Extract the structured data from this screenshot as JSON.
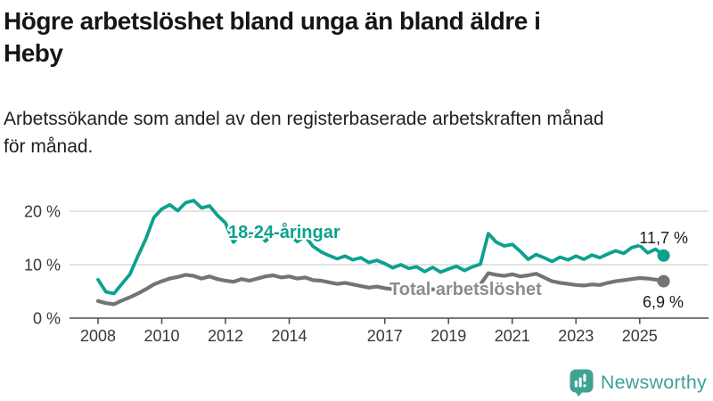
{
  "header": {
    "title_lines": [
      "Högre arbetslöshet bland unga än bland äldre i",
      "Heby"
    ],
    "subtitle_lines": [
      "Arbetssökande som andel av den registerbaserade arbetskraften månad",
      "för månad."
    ]
  },
  "chart_data": {
    "type": "line",
    "title": "Högre arbetslöshet bland unga än bland äldre i Heby",
    "subtitle": "Arbetssökande som andel av den registerbaserade arbetskraften månad för månad.",
    "x_start": 2008,
    "x_step": 0.25,
    "x_ticks": [
      2008,
      2010,
      2012,
      2014,
      2017,
      2019,
      2021,
      2023,
      2025
    ],
    "y_ticks": [
      0,
      10,
      20
    ],
    "y_tick_labels": [
      "0 %",
      "10 %",
      "20 %"
    ],
    "ylim": [
      0,
      23
    ],
    "xlabel": "",
    "ylabel": "",
    "unit": "%",
    "grid": "horizontal-only",
    "legend_position": "inline-labels",
    "series": [
      {
        "name": "18-24-åringar",
        "color": "#0CA18D",
        "end_label": "11,7 %",
        "end_value": 11.7,
        "values": [
          7.2,
          4.9,
          4.6,
          6.4,
          8.2,
          11.6,
          14.8,
          18.8,
          20.4,
          21.2,
          20.1,
          21.6,
          22.0,
          20.6,
          21.0,
          19.2,
          17.8,
          14.2,
          15.9,
          15.3,
          16.2,
          14.4,
          15.7,
          15.9,
          15.8,
          14.3,
          15.3,
          13.4,
          12.4,
          11.7,
          11.1,
          11.6,
          10.9,
          11.3,
          10.4,
          10.8,
          10.2,
          9.4,
          10.0,
          9.3,
          9.6,
          8.7,
          9.5,
          8.6,
          9.2,
          9.7,
          8.9,
          9.6,
          10.1,
          15.8,
          14.2,
          13.5,
          13.8,
          12.5,
          11.0,
          11.9,
          11.3,
          10.6,
          11.4,
          10.9,
          11.6,
          11.0,
          11.8,
          11.3,
          12.0,
          12.6,
          12.1,
          13.2,
          13.6,
          12.2,
          12.9,
          11.7
        ]
      },
      {
        "name": "Total arbetslöshet",
        "color": "#747474",
        "label_color": "#8C8C8C",
        "end_label": "6,9 %",
        "end_value": 6.9,
        "values": [
          3.2,
          2.8,
          2.6,
          3.3,
          3.9,
          4.6,
          5.4,
          6.3,
          6.9,
          7.4,
          7.7,
          8.1,
          7.9,
          7.4,
          7.8,
          7.3,
          7.0,
          6.8,
          7.3,
          7.0,
          7.4,
          7.8,
          8.0,
          7.6,
          7.8,
          7.4,
          7.6,
          7.1,
          7.0,
          6.7,
          6.4,
          6.6,
          6.3,
          6.0,
          5.7,
          5.9,
          5.6,
          5.4,
          5.6,
          5.3,
          5.5,
          5.2,
          5.4,
          5.2,
          5.4,
          5.6,
          5.5,
          5.8,
          6.3,
          8.4,
          8.1,
          7.9,
          8.2,
          7.8,
          8.0,
          8.3,
          7.6,
          6.9,
          6.6,
          6.4,
          6.2,
          6.1,
          6.3,
          6.2,
          6.6,
          6.9,
          7.1,
          7.3,
          7.5,
          7.4,
          7.2,
          6.9
        ]
      }
    ]
  },
  "footer": {
    "brand": "Newsworthy",
    "brand_color": "#3FA294"
  }
}
